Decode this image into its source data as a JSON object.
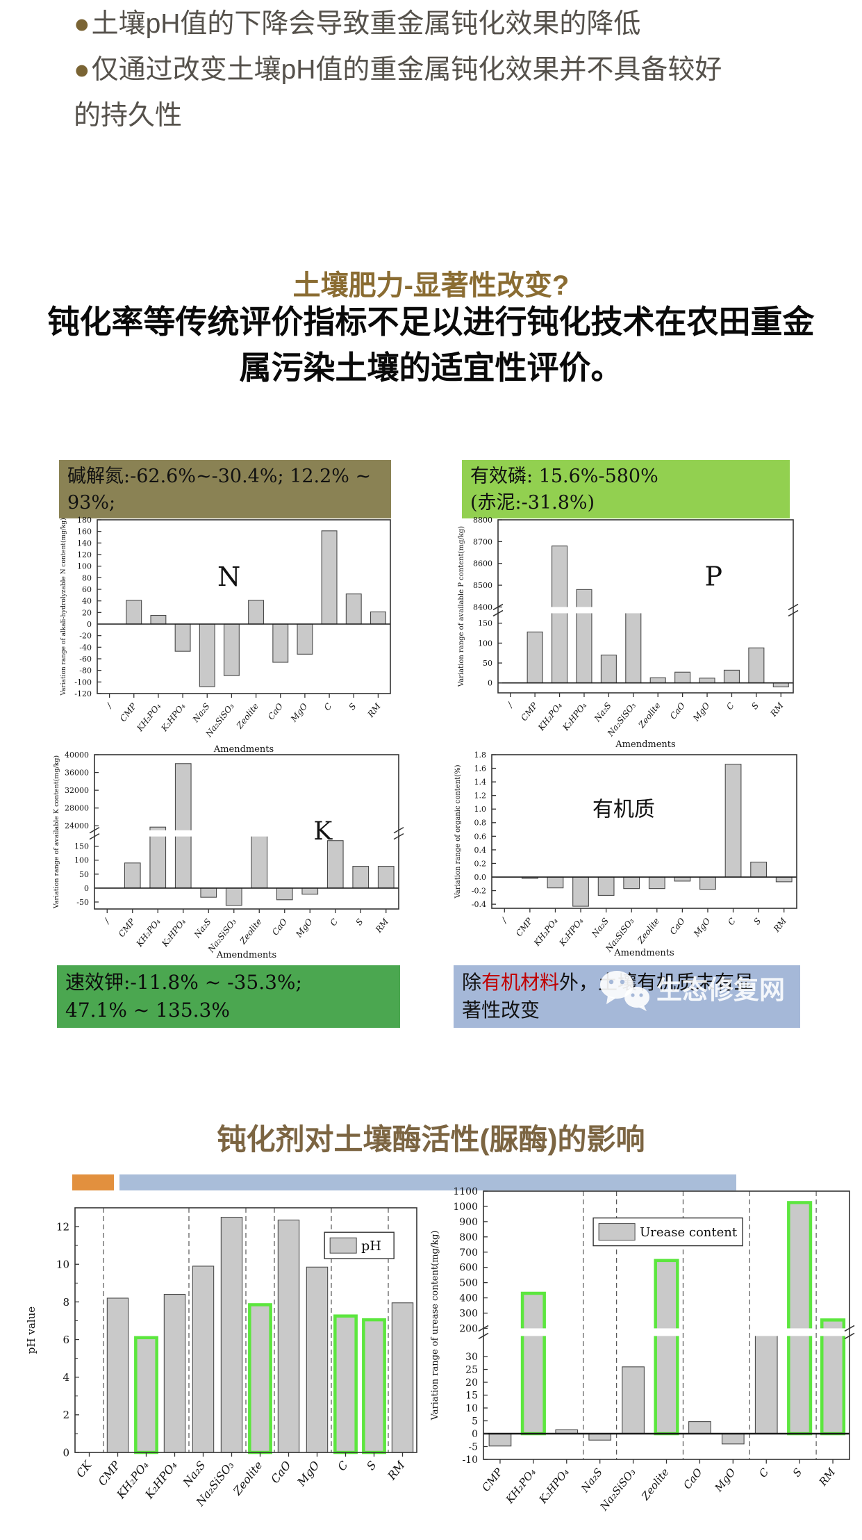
{
  "colors": {
    "n_box_bg": "#8a8254",
    "p_box_bg": "#92d050",
    "k_box_bg": "#4ba750",
    "org_box_bg": "#a5b8d8",
    "orange_accent": "#e2903e",
    "blue_accent": "#a9bdd9",
    "bar_fill": "#c9c9c9",
    "bar_stroke": "#4a4a4a",
    "highlight_green": "#5ce63e",
    "heading_brown": "#8a6c32"
  },
  "bullets": {
    "lines": [
      {
        "marker": "●",
        "text": "土壤pH值的下降会导致重金属钝化效果的降低"
      },
      {
        "marker": "●",
        "text": "仅通过改变土壤pH值的重金属钝化效果并不具备较好"
      },
      {
        "marker": "",
        "text": "的持久性"
      }
    ]
  },
  "section1": {
    "heading": "土壤肥力-显著性改变?",
    "statement_line1": "钝化率等传统评价指标不足以进行钝化技术在农田重金",
    "statement_line2": "属污染土壤的适宜性评价。"
  },
  "annotations": {
    "n_box": {
      "text": "碱解氮:-62.6%~-30.4%; 12.2% ~ 93%;"
    },
    "p_box": {
      "line1": "有效磷: 15.6%-580%",
      "line2": "(赤泥:-31.8%)"
    },
    "k_box": {
      "line1": "速效钾:-11.8% ~ -35.3%;",
      "line2": "47.1% ~ 135.3%"
    },
    "org_box": {
      "prefix": "除",
      "highlight": "有机材料",
      "suffix": "外，土壤有机质未有显",
      "line2": "著性改变"
    }
  },
  "watermark": {
    "text": "生态修复网",
    "icon": "wechat-icon"
  },
  "section2": {
    "heading": "钝化剂对土壤酶活性(脲酶)的影响"
  },
  "chart_data": [
    {
      "id": "n",
      "type": "bar",
      "center_label": "N",
      "ylabel": "Variation range of alkali-hydrolyzable N content(mg/kg)",
      "xlabel": "Amendments",
      "categories": [
        "/",
        "CMP",
        "KH₂PO₄",
        "K₂HPO₄",
        "Na₂S",
        "Na₂SiSO₃",
        "Zeolite",
        "CaO",
        "MgO",
        "C",
        "S",
        "RM"
      ],
      "values": [
        null,
        41,
        15,
        -47,
        -108,
        -89,
        41,
        -66,
        -52,
        161,
        52,
        21
      ],
      "axis": {
        "min": -120,
        "max": 180,
        "ticks": [
          -120,
          -100,
          -80,
          -60,
          -40,
          -20,
          0,
          20,
          40,
          60,
          80,
          100,
          120,
          140,
          160,
          180
        ]
      },
      "grid": false,
      "legend_position": "none"
    },
    {
      "id": "p",
      "type": "bar",
      "center_label": "P",
      "ylabel": "Variation range of available P content(mg/kg)",
      "xlabel": "Amendments",
      "categories": [
        "/",
        "CMP",
        "KH₂PO₄",
        "K₂HPO₄",
        "Na₂S",
        "Na₂SiSO₃",
        "Zeolite",
        "CaO",
        "MgO",
        "C",
        "S",
        "RM"
      ],
      "values": [
        null,
        128,
        8680,
        8480,
        70,
        200,
        13,
        27,
        12,
        32,
        88,
        -10
      ],
      "axis": {
        "lower": {
          "min": -25,
          "max": 175,
          "ticks": [
            0,
            50,
            100,
            150
          ]
        },
        "upper": {
          "min": 8400,
          "max": 8800,
          "ticks": [
            8400,
            8500,
            8600,
            8700,
            8800
          ]
        }
      },
      "grid": false,
      "legend_position": "none"
    },
    {
      "id": "k",
      "type": "bar",
      "center_label": "K",
      "ylabel": "Variation range of available K content(mg/kg)",
      "xlabel": "Amendments",
      "categories": [
        "/",
        "CMP",
        "KH₂PO₄",
        "K₂HPO₄",
        "Na₂S",
        "Na₂SiSO₃",
        "Zeolite",
        "CaO",
        "MgO",
        "C",
        "S",
        "RM"
      ],
      "values": [
        null,
        90,
        23700,
        38000,
        -33,
        -62,
        200,
        -42,
        -22,
        170,
        78,
        78
      ],
      "axis": {
        "lower": {
          "min": -75,
          "max": 185,
          "ticks": [
            -50,
            0,
            50,
            100,
            150
          ]
        },
        "upper": {
          "min": 23000,
          "max": 40000,
          "ticks": [
            24000,
            28000,
            32000,
            36000,
            40000
          ]
        }
      },
      "grid": false,
      "legend_position": "none"
    },
    {
      "id": "org",
      "type": "bar",
      "center_label": "有机质",
      "ylabel": "Variation range of organic content(%)",
      "xlabel": "Amendments",
      "categories": [
        "/",
        "CMP",
        "KH₂PO₄",
        "K₂HPO₄",
        "Na₂S",
        "Na₂SiSO₃",
        "Zeolite",
        "CaO",
        "MgO",
        "C",
        "S",
        "RM"
      ],
      "values": [
        null,
        -0.02,
        -0.16,
        -0.43,
        -0.27,
        -0.17,
        -0.17,
        -0.06,
        -0.18,
        1.66,
        0.22,
        -0.07
      ],
      "tick_decimals": 1,
      "axis": {
        "min": -0.46,
        "max": 1.8,
        "ticks": [
          -0.4,
          -0.2,
          0,
          0.2,
          0.4,
          0.6,
          0.8,
          1,
          1.2,
          1.4,
          1.6,
          1.8
        ]
      },
      "grid": false,
      "legend_position": "none"
    },
    {
      "id": "ph",
      "type": "bar",
      "legend": "pH",
      "legend_position": "top-right",
      "ylabel": "pH value",
      "categories": [
        "CK",
        "CMP",
        "KH₂PO₄",
        "K₂HPO₄",
        "Na₂S",
        "Na₂SiSO₃",
        "Zeolite",
        "CaO",
        "MgO",
        "C",
        "S",
        "RM"
      ],
      "values": [
        null,
        8.2,
        6.1,
        8.4,
        9.9,
        12.5,
        7.85,
        12.35,
        9.85,
        7.25,
        7.05,
        7.95
      ],
      "highlight_indices": [
        2,
        6,
        9,
        10
      ],
      "separators_after": [
        0,
        3,
        5,
        6,
        8,
        10
      ],
      "axis": {
        "min": 0,
        "max": 13,
        "ticks": [
          0,
          2,
          4,
          6,
          8,
          10,
          12
        ]
      },
      "minor_ticks": [
        1,
        3,
        5,
        7,
        9,
        11,
        13
      ],
      "grid": false
    },
    {
      "id": "ur",
      "type": "bar",
      "legend": "Urease content",
      "legend_position": "top-center",
      "ylabel": "Variation range of urease content(mg/kg)",
      "categories": [
        "CMP",
        "KH₂PO₄",
        "K₂HPO₄",
        "Na₂S",
        "Na₂SiSO₃",
        "Zeolite",
        "CaO",
        "MgO",
        "C",
        "S",
        "RM"
      ],
      "values": [
        -4.8,
        430,
        1.5,
        -2.5,
        26,
        645,
        4.7,
        -4,
        40,
        1025,
        255
      ],
      "highlight_indices": [
        1,
        5,
        9,
        10
      ],
      "separators_after": [
        2,
        3,
        5,
        7,
        9
      ],
      "axis": {
        "lower": {
          "min": -10,
          "max": 38,
          "ticks": [
            -10,
            -5,
            0,
            5,
            10,
            15,
            20,
            25,
            30
          ]
        },
        "upper": {
          "min": 200,
          "max": 1100,
          "ticks": [
            200,
            300,
            400,
            500,
            600,
            700,
            800,
            900,
            1000,
            1100
          ]
        }
      },
      "grid": false
    }
  ]
}
